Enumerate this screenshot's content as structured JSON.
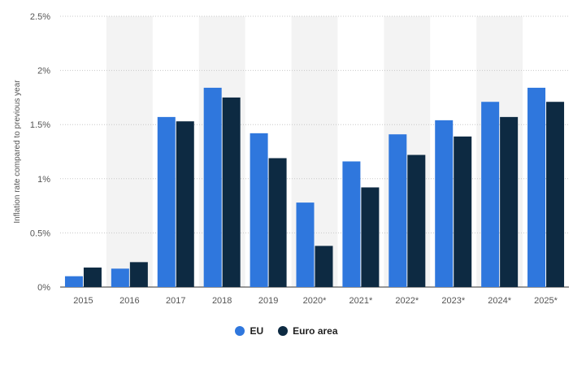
{
  "chart_data": {
    "type": "bar",
    "title": "",
    "xlabel": "",
    "ylabel": "Inflation rate compared to previous year",
    "categories": [
      "2015",
      "2016",
      "2017",
      "2018",
      "2019",
      "2020*",
      "2021*",
      "2022*",
      "2023*",
      "2024*",
      "2025*"
    ],
    "series": [
      {
        "name": "EU",
        "color": "#2f77dd",
        "values": [
          0.1,
          0.17,
          1.57,
          1.84,
          1.42,
          0.78,
          1.16,
          1.41,
          1.54,
          1.71,
          1.84
        ]
      },
      {
        "name": "Euro area",
        "color": "#0d2a42",
        "values": [
          0.18,
          0.23,
          1.53,
          1.75,
          1.19,
          0.38,
          0.92,
          1.22,
          1.39,
          1.57,
          1.71
        ]
      }
    ],
    "ylim": [
      0,
      2.5
    ],
    "yticks": [
      0,
      0.5,
      1,
      1.5,
      2,
      2.5
    ],
    "ytick_labels": [
      "0%",
      "0.5%",
      "1%",
      "1.5%",
      "2%",
      "2.5%"
    ],
    "grid": true,
    "alternating_column_shading": true,
    "legend_position": "bottom-center"
  }
}
